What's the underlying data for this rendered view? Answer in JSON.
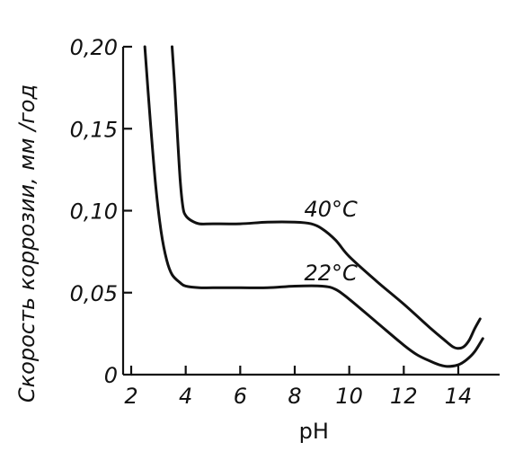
{
  "chart_data": {
    "type": "line",
    "xlabel": "pH",
    "ylabel": "Скорость коррозии, мм /год",
    "xlim": [
      2,
      15
    ],
    "ylim": [
      0,
      0.2
    ],
    "xticks": [
      2,
      4,
      6,
      8,
      10,
      12,
      14
    ],
    "xtick_labels": [
      "2",
      "4",
      "6",
      "8",
      "10",
      "12",
      "14"
    ],
    "yticks": [
      0,
      0.05,
      0.1,
      0.15,
      0.2
    ],
    "ytick_labels": [
      "0",
      "0,05",
      "0,10",
      "0,15",
      "0,20"
    ],
    "grid": false,
    "line_color": "#111111",
    "series": [
      {
        "name": "40°C",
        "x": [
          3.5,
          3.6,
          3.7,
          3.8,
          3.9,
          4.0,
          4.2,
          4.5,
          5.0,
          6.0,
          7.0,
          8.0,
          8.6,
          9.0,
          9.5,
          10.0,
          11.0,
          12.0,
          13.0,
          13.5,
          13.8,
          14.0,
          14.2,
          14.4,
          14.6,
          14.8
        ],
        "y": [
          0.2,
          0.175,
          0.145,
          0.118,
          0.102,
          0.097,
          0.094,
          0.092,
          0.092,
          0.092,
          0.093,
          0.093,
          0.092,
          0.089,
          0.082,
          0.072,
          0.057,
          0.043,
          0.028,
          0.021,
          0.017,
          0.016,
          0.017,
          0.021,
          0.028,
          0.034
        ]
      },
      {
        "name": "22°C",
        "x": [
          2.5,
          2.7,
          2.9,
          3.1,
          3.3,
          3.5,
          3.8,
          4.0,
          4.5,
          5.0,
          6.0,
          7.0,
          8.0,
          9.0,
          9.5,
          10.0,
          11.0,
          12.0,
          12.5,
          13.0,
          13.3,
          13.6,
          14.0,
          14.3,
          14.6,
          14.9
        ],
        "y": [
          0.2,
          0.155,
          0.115,
          0.087,
          0.07,
          0.061,
          0.056,
          0.054,
          0.053,
          0.053,
          0.053,
          0.053,
          0.054,
          0.054,
          0.052,
          0.046,
          0.032,
          0.018,
          0.012,
          0.008,
          0.006,
          0.005,
          0.006,
          0.009,
          0.014,
          0.022
        ]
      }
    ],
    "annotations": [
      {
        "text": "40°C",
        "x": 10.3,
        "y": 0.0965
      },
      {
        "text": "22°C",
        "x": 10.3,
        "y": 0.0575
      }
    ]
  }
}
